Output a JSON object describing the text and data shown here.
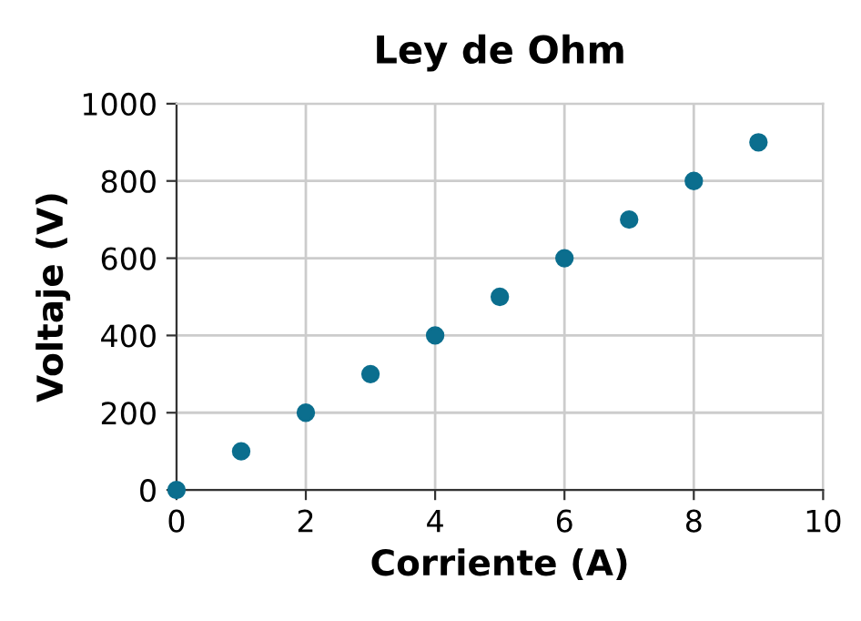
{
  "chart_data": {
    "type": "scatter",
    "title": "Ley de Ohm",
    "xlabel": "Corriente (A)",
    "ylabel": "Voltaje (V)",
    "x": [
      0,
      1,
      2,
      3,
      4,
      5,
      6,
      7,
      8,
      9
    ],
    "values": [
      0,
      100,
      200,
      300,
      400,
      500,
      600,
      700,
      800,
      900
    ],
    "color": "#0b6e8e",
    "marker": "circle",
    "xlim": [
      0,
      10
    ],
    "xticks": [
      0,
      2,
      4,
      6,
      8,
      10
    ],
    "ylim": [
      0,
      1000
    ],
    "yticks": [
      0,
      200,
      400,
      600,
      800,
      1000
    ],
    "grid": true
  }
}
